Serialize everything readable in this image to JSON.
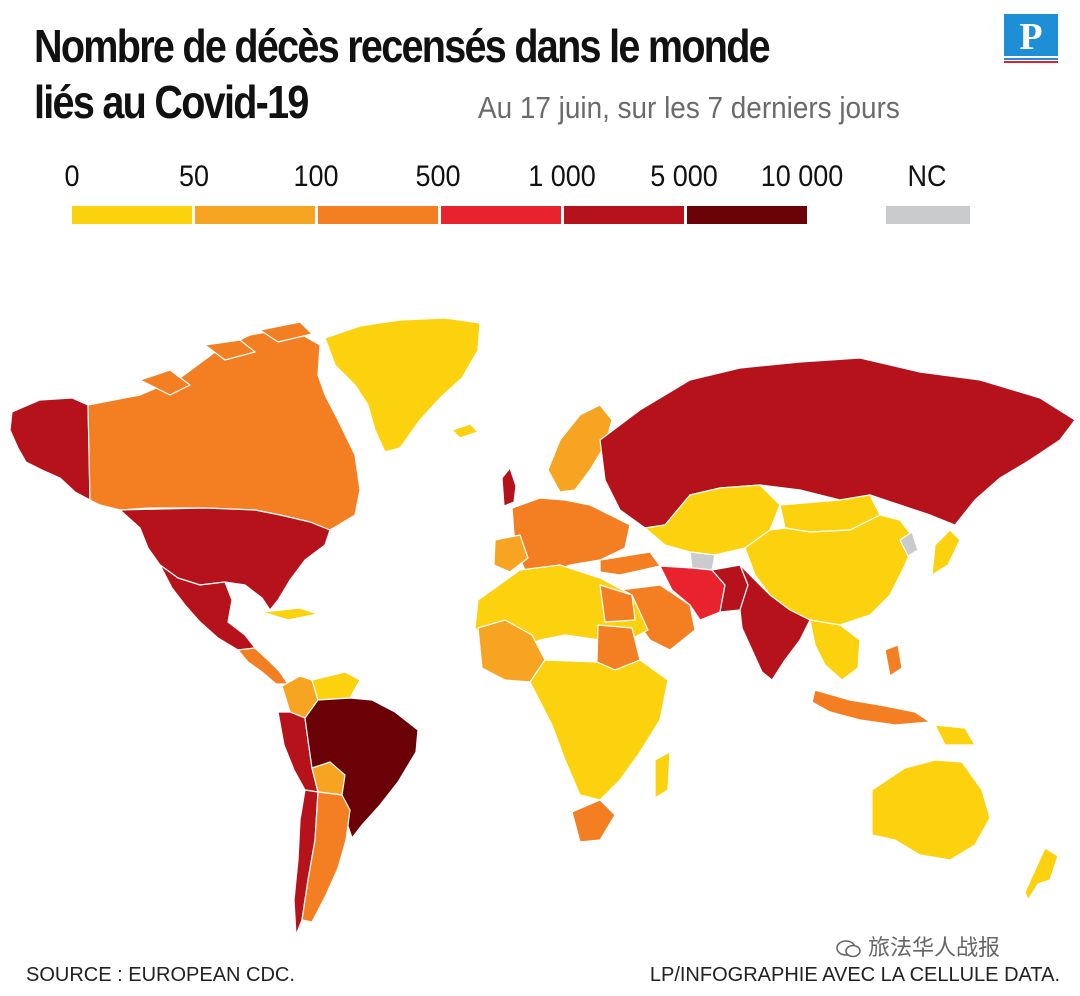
{
  "title_line1": "Nombre de décès recensés dans le monde",
  "title_line2": "liés au Covid-19",
  "subtitle": "Au 17 juin, sur les 7 derniers jours",
  "logo_letter": "P",
  "legend": {
    "labels": [
      "0",
      "50",
      "100",
      "500",
      "1 000",
      "5 000",
      "10 000"
    ],
    "colors": [
      "#fcd20e",
      "#f8a423",
      "#f47f22",
      "#e8232d",
      "#b5121b",
      "#6a0107"
    ],
    "nc_label": "NC",
    "nc_color": "#c9cbcc"
  },
  "footer_source": "SOURCE : EUROPEAN CDC.",
  "footer_credit": "LP/INFOGRAPHIE AVEC LA CELLULE DATA.",
  "watermark": "旅法华人战报"
}
